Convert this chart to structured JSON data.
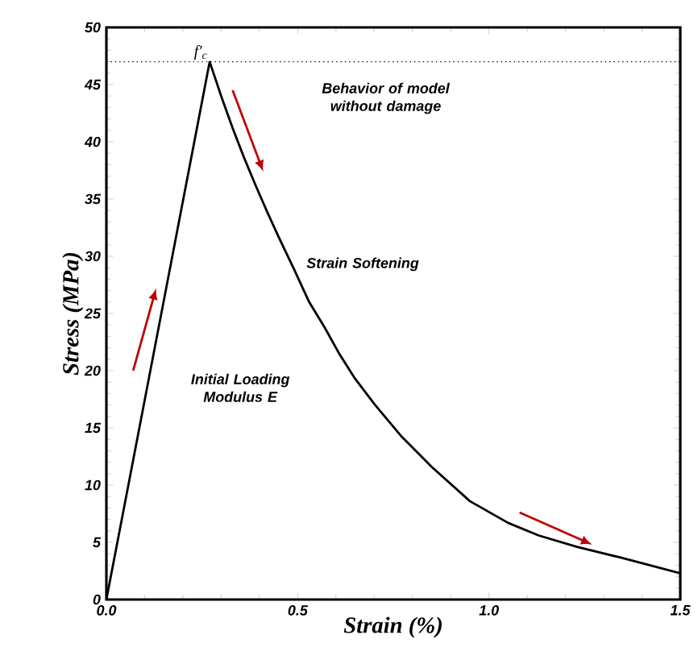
{
  "chart_data": {
    "type": "line",
    "xlabel": "Strain (%)",
    "ylabel": "Stress (MPa)",
    "x": [
      0,
      0.27,
      0.3,
      0.33,
      0.36,
      0.39,
      0.42,
      0.45,
      0.49,
      0.53,
      0.57,
      0.61,
      0.65,
      0.7,
      0.77,
      0.85,
      0.95,
      1.05,
      1.13,
      1.23,
      1.34,
      1.42,
      1.5
    ],
    "series": [
      {
        "color": "#000000",
        "values": [
          0,
          47,
          44,
          41.2,
          38.6,
          36.2,
          33.9,
          31.7,
          28.9,
          26,
          23.8,
          21.4,
          19.3,
          17.1,
          14.3,
          11.6,
          8.6,
          6.7,
          5.6,
          4.6,
          3.7,
          3,
          2.3
        ]
      }
    ],
    "xlim": [
      0,
      1.5
    ],
    "ylim": [
      0,
      50
    ],
    "xticks": [
      {
        "value": 0,
        "label": "0.0"
      },
      {
        "value": 0.5,
        "label": "0.5"
      },
      {
        "value": 1,
        "label": "1.0"
      },
      {
        "value": 1.5,
        "label": "1.5"
      }
    ],
    "yticks": [
      0,
      5,
      10,
      15,
      20,
      25,
      30,
      35,
      40,
      45,
      50
    ],
    "ref_lines": [
      {
        "axis": "y",
        "value": 47,
        "line_style": "dotted"
      }
    ],
    "annotations": [
      {
        "text": "f′$_{c}$",
        "x": 0.27,
        "y": 47
      },
      "Behavior of model without damage",
      "Strain Softening",
      "Initial Loading Modulus E"
    ],
    "marker": "none",
    "line_style": "solid",
    "grid": false
  }
}
